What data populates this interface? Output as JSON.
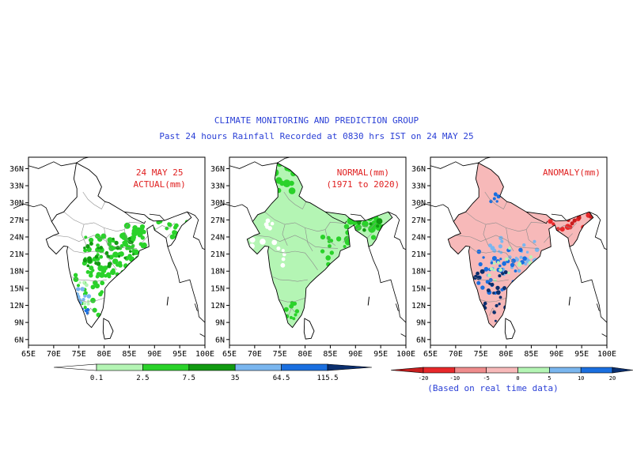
{
  "header": {
    "line1": "CLIMATE MONITORING AND PREDICTION GROUP",
    "line2": "Past 24 hours Rainfall Recorded at 0830 hrs IST on 24 MAY 25"
  },
  "axes": {
    "lat_labels": [
      "36N",
      "33N",
      "30N",
      "27N",
      "24N",
      "21N",
      "18N",
      "15N",
      "12N",
      "9N",
      "6N"
    ],
    "lon_labels": [
      "65E",
      "70E",
      "75E",
      "80E",
      "85E",
      "90E",
      "95E",
      "100E"
    ]
  },
  "panels": [
    {
      "id": "actual",
      "label_lines": [
        "24 MAY 25",
        "ACTUAL(mm)"
      ],
      "label_color": "#e02020"
    },
    {
      "id": "normal",
      "label_lines": [
        "NORMAL(mm)",
        "(1971 to 2020)"
      ],
      "label_color": "#e02020"
    },
    {
      "id": "anomaly",
      "label_lines": [
        "ANOMALY(mm)"
      ],
      "label_color": "#e02020"
    }
  ],
  "rain_legend": {
    "labels": [
      "0.1",
      "2.5",
      "7.5",
      "35",
      "64.5",
      "115.5"
    ],
    "colors": [
      "#ffffff",
      "#b4f5b4",
      "#2ad22a",
      "#119a11",
      "#7ab6ef",
      "#1a6fe0",
      "#0b2f6e"
    ]
  },
  "anomaly_legend": {
    "labels": [
      "-20",
      "-10",
      "-5",
      "0",
      "5",
      "10",
      "20"
    ],
    "colors": [
      "#c81e1e",
      "#e8282a",
      "#ef8c8c",
      "#f7b9b9",
      "#b4f5b4",
      "#7ab6ef",
      "#1a6fe0",
      "#0b2f6e"
    ],
    "note": "(Based on real time data)"
  },
  "colors": {
    "title_blue": "#2a3fd6",
    "map_outline": "#000000",
    "state_lines": "#8c8c8c"
  }
}
